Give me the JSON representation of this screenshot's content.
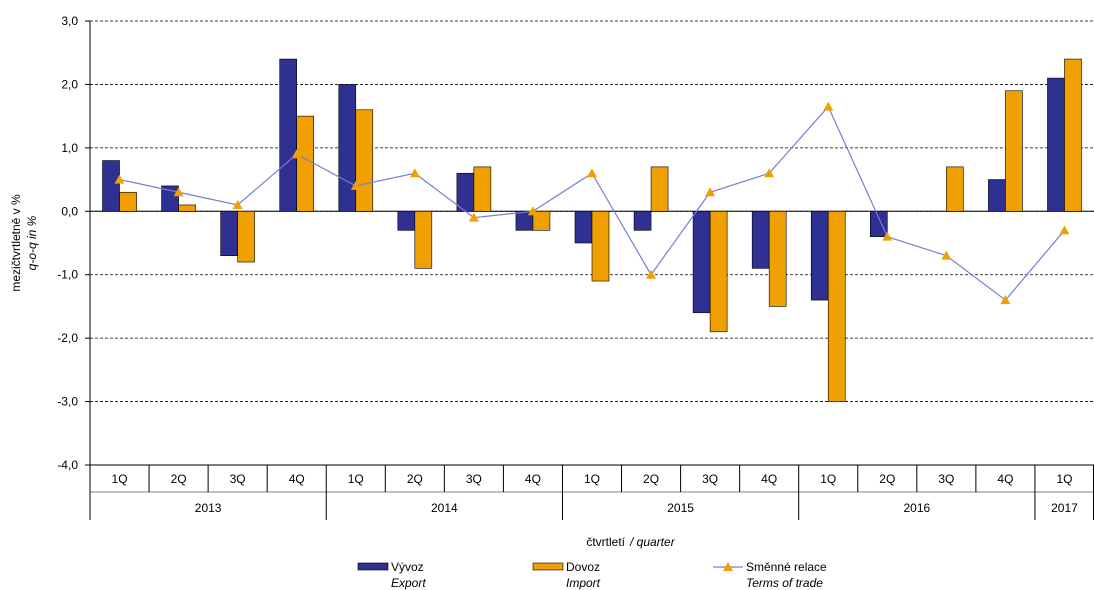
{
  "chart_data": {
    "type": "bar",
    "y_label": "mezičtvrtletně v %",
    "y_label_en": "q-o-q  in %",
    "x_label": "čtvrtletí",
    "x_label_en": "/ quarter",
    "groups": [
      {
        "label": "2013",
        "categories": [
          "1Q",
          "2Q",
          "3Q",
          "4Q"
        ]
      },
      {
        "label": "2014",
        "categories": [
          "1Q",
          "2Q",
          "3Q",
          "4Q"
        ]
      },
      {
        "label": "2015",
        "categories": [
          "1Q",
          "2Q",
          "3Q",
          "4Q"
        ]
      },
      {
        "label": "2016",
        "categories": [
          "1Q",
          "2Q",
          "3Q",
          "4Q"
        ]
      },
      {
        "label": "2017",
        "categories": [
          "1Q"
        ]
      }
    ],
    "series": [
      {
        "name": "Vývoz",
        "name_en": "Export",
        "type": "bar",
        "color": "#2e3192",
        "values": [
          0.8,
          0.4,
          -0.7,
          2.4,
          2.0,
          -0.3,
          0.6,
          -0.3,
          -0.5,
          -0.3,
          -1.6,
          -0.9,
          -1.4,
          -0.4,
          0.0,
          0.5,
          2.1
        ]
      },
      {
        "name": "Dovoz",
        "name_en": "Import",
        "type": "bar",
        "color": "#f0a000",
        "values": [
          0.3,
          0.1,
          -0.8,
          1.5,
          1.6,
          -0.9,
          0.7,
          -0.3,
          -1.1,
          0.7,
          -1.9,
          -1.5,
          -3.0,
          0.0,
          0.7,
          1.9,
          2.4
        ]
      },
      {
        "name": "Směnné relace",
        "name_en": "Terms of trade",
        "type": "line",
        "color": "#7b7bd6",
        "marker_color": "#f0a000",
        "values": [
          0.5,
          0.3,
          0.1,
          0.9,
          0.4,
          0.6,
          -0.1,
          0.0,
          0.6,
          -1.0,
          0.3,
          0.6,
          1.65,
          -0.4,
          -0.7,
          -1.4,
          -0.3
        ]
      }
    ],
    "ylim": [
      -4,
      3
    ],
    "yticks": [
      {
        "value": -4,
        "label": "-4,0"
      },
      {
        "value": -3,
        "label": "-3,0"
      },
      {
        "value": -2,
        "label": "-2,0"
      },
      {
        "value": -1,
        "label": "-1,0"
      },
      {
        "value": 0,
        "label": "0,0"
      },
      {
        "value": 1,
        "label": "1,0"
      },
      {
        "value": 2,
        "label": "2,0"
      },
      {
        "value": 3,
        "label": "3,0"
      }
    ],
    "grid": true
  }
}
